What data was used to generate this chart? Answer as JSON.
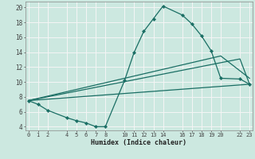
{
  "xlabel": "Humidex (Indice chaleur)",
  "bg_color": "#cce8e0",
  "grid_color": "#f5f5f5",
  "line_color": "#1a6e64",
  "xlim": [
    -0.3,
    23.3
  ],
  "ylim": [
    3.5,
    20.8
  ],
  "xticks": [
    0,
    1,
    2,
    4,
    5,
    6,
    7,
    8,
    10,
    11,
    12,
    13,
    14,
    16,
    17,
    18,
    19,
    20,
    22,
    23
  ],
  "yticks": [
    4,
    6,
    8,
    10,
    12,
    14,
    16,
    18,
    20
  ],
  "main_line": {
    "x": [
      0,
      1,
      2,
      4,
      5,
      6,
      7,
      8,
      10,
      11,
      12,
      13,
      14,
      16,
      17,
      18,
      19,
      20,
      22,
      23
    ],
    "y": [
      7.5,
      7.0,
      6.2,
      5.2,
      4.8,
      4.5,
      4.0,
      4.0,
      10.2,
      14.0,
      16.8,
      18.5,
      20.2,
      19.0,
      17.8,
      16.2,
      14.2,
      10.5,
      10.4,
      9.7
    ]
  },
  "straight_lines": [
    {
      "x": [
        0,
        20,
        23
      ],
      "y": [
        7.5,
        13.5,
        10.5
      ]
    },
    {
      "x": [
        0,
        22,
        23
      ],
      "y": [
        7.5,
        13.1,
        9.7
      ]
    },
    {
      "x": [
        0,
        23
      ],
      "y": [
        7.5,
        9.7
      ]
    }
  ]
}
